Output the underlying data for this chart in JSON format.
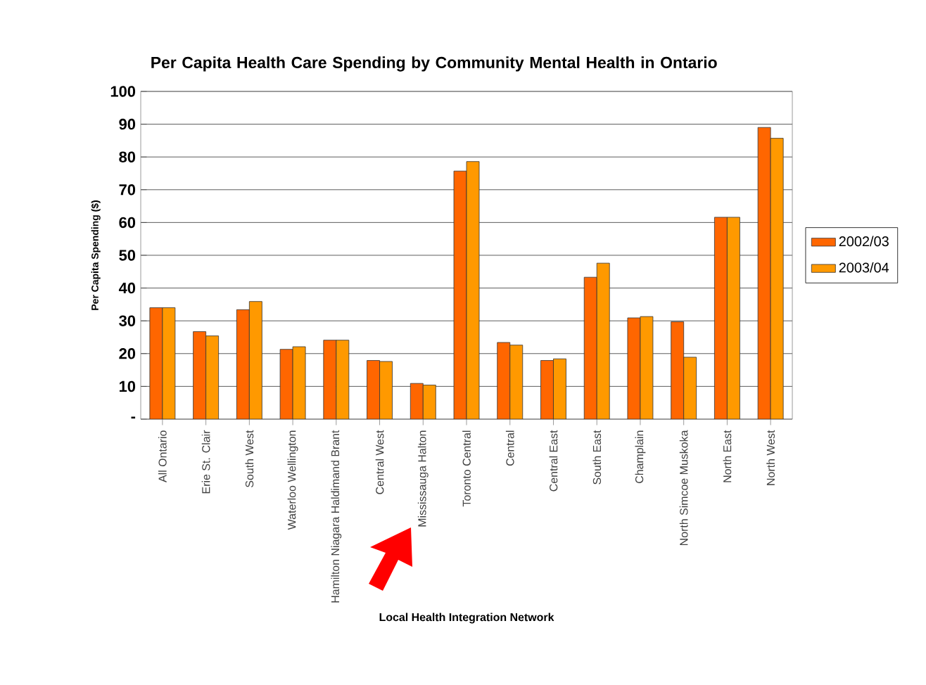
{
  "chart_data": {
    "type": "bar",
    "title": "Per Capita Health Care Spending by Community Mental Health in Ontario",
    "xlabel": "Local Health Integration Network",
    "ylabel": "Per Capita Spending ($)",
    "categories": [
      "All Ontario",
      "Erie St. Clair",
      "South West",
      "Waterloo Wellington",
      "Hamilton Niagara Haldimand Brant",
      "Central West",
      "Mississauga Halton",
      "Toronto Central",
      "Central",
      "Central East",
      "South East",
      "Champlain",
      "North Simcoe Muskoka",
      "North East",
      "North West"
    ],
    "series": [
      {
        "name": "2002/03",
        "color": "#ff6600",
        "values": [
          34,
          26.7,
          33.4,
          21.3,
          24.1,
          17.9,
          10.9,
          75.7,
          23.4,
          17.9,
          43.3,
          30.9,
          29.7,
          61.6,
          89
        ]
      },
      {
        "name": "2003/04",
        "color": "#ff9900",
        "values": [
          34,
          25.4,
          35.9,
          22.1,
          24.1,
          17.6,
          10.4,
          78.6,
          22.6,
          18.4,
          47.6,
          31.3,
          18.9,
          61.6,
          85.7
        ]
      }
    ],
    "ylim": [
      0,
      100
    ],
    "yticks": [
      {
        "value": 0,
        "label": "-"
      },
      10,
      20,
      30,
      40,
      50,
      60,
      70,
      80,
      90,
      100
    ],
    "grid": "y",
    "legend": "right"
  }
}
